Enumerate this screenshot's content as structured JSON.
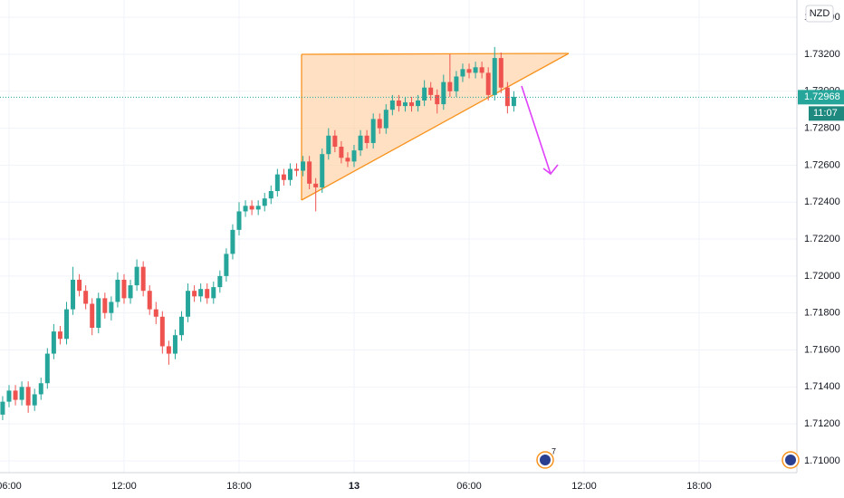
{
  "chart_data": {
    "type": "candlestick",
    "currency": "NZD",
    "last_price": 1.72968,
    "countdown": "11:07",
    "event_count_label": "7",
    "up_color": "#26a69a",
    "down_color": "#ef5350",
    "grid": true,
    "xlim": [
      331.7,
      2826
    ],
    "xticks": [
      {
        "value": 360,
        "label": "06:00"
      },
      {
        "value": 720,
        "label": "12:00"
      },
      {
        "value": 1080,
        "label": "18:00"
      },
      {
        "value": 1440,
        "label": "13"
      },
      {
        "value": 1800,
        "label": "06:00"
      },
      {
        "value": 2160,
        "label": "12:00"
      },
      {
        "value": 2520,
        "label": "18:00"
      }
    ],
    "ylim": [
      1.70936,
      1.73494
    ],
    "yticks": [
      {
        "value": 1.71,
        "label": "1.71000"
      },
      {
        "value": 1.712,
        "label": "1.71200"
      },
      {
        "value": 1.714,
        "label": "1.71400"
      },
      {
        "value": 1.716,
        "label": "1.71600"
      },
      {
        "value": 1.718,
        "label": "1.71800"
      },
      {
        "value": 1.72,
        "label": "1.72000"
      },
      {
        "value": 1.722,
        "label": "1.72200"
      },
      {
        "value": 1.724,
        "label": "1.72400"
      },
      {
        "value": 1.726,
        "label": "1.72600"
      },
      {
        "value": 1.728,
        "label": "1.72800"
      },
      {
        "value": 1.73,
        "label": "1.73000"
      },
      {
        "value": 1.732,
        "label": "1.73200"
      },
      {
        "value": 1.734,
        "label": "1.73400"
      }
    ],
    "x": [
      320,
      340,
      360,
      380,
      400,
      420,
      440,
      460,
      480,
      500,
      520,
      540,
      560,
      580,
      600,
      620,
      640,
      660,
      680,
      700,
      720,
      740,
      760,
      780,
      800,
      820,
      840,
      860,
      880,
      900,
      920,
      940,
      960,
      980,
      1000,
      1020,
      1040,
      1060,
      1080,
      1100,
      1120,
      1140,
      1160,
      1180,
      1200,
      1220,
      1240,
      1260,
      1280,
      1300,
      1320,
      1340,
      1360,
      1380,
      1400,
      1420,
      1440,
      1460,
      1480,
      1500,
      1520,
      1540,
      1560,
      1580,
      1600,
      1620,
      1640,
      1660,
      1680,
      1700,
      1720,
      1740,
      1760,
      1780,
      1800,
      1820,
      1840,
      1860,
      1880,
      1900,
      1920,
      1940
    ],
    "open": [
      1.712,
      1.7125,
      1.7132,
      1.7138,
      1.7133,
      1.714,
      1.713,
      1.7136,
      1.7142,
      1.7158,
      1.717,
      1.7166,
      1.7182,
      1.7198,
      1.7192,
      1.7185,
      1.7172,
      1.7188,
      1.718,
      1.7186,
      1.7198,
      1.7188,
      1.7195,
      1.7205,
      1.7192,
      1.7182,
      1.7178,
      1.7162,
      1.7158,
      1.7168,
      1.7178,
      1.7192,
      1.7189,
      1.7193,
      1.7188,
      1.7194,
      1.72,
      1.7212,
      1.7225,
      1.7235,
      1.7238,
      1.7236,
      1.7238,
      1.7242,
      1.7246,
      1.7255,
      1.7252,
      1.7258,
      1.7257,
      1.7262,
      1.725,
      1.7248,
      1.7266,
      1.7276,
      1.727,
      1.7264,
      1.7262,
      1.7268,
      1.7276,
      1.7272,
      1.7285,
      1.728,
      1.729,
      1.7295,
      1.7292,
      1.7294,
      1.7292,
      1.7295,
      1.7302,
      1.7298,
      1.7293,
      1.7305,
      1.73,
      1.7308,
      1.7312,
      1.731,
      1.7313,
      1.731,
      1.7298,
      1.7318,
      1.7302,
      1.7292
    ],
    "high": [
      1.7128,
      1.7135,
      1.7141,
      1.7141,
      1.7143,
      1.7143,
      1.7139,
      1.7145,
      1.7161,
      1.7174,
      1.7173,
      1.7186,
      1.7205,
      1.7201,
      1.7195,
      1.7188,
      1.7191,
      1.7191,
      1.7189,
      1.7202,
      1.7201,
      1.7198,
      1.7209,
      1.7208,
      1.7195,
      1.7186,
      1.7181,
      1.7165,
      1.7171,
      1.7181,
      1.7196,
      1.7195,
      1.7196,
      1.7196,
      1.7197,
      1.7203,
      1.7215,
      1.7228,
      1.724,
      1.7241,
      1.7241,
      1.7241,
      1.7245,
      1.7249,
      1.7258,
      1.7258,
      1.7261,
      1.7261,
      1.7265,
      1.7265,
      1.7253,
      1.7269,
      1.728,
      1.7279,
      1.7273,
      1.7267,
      1.7271,
      1.7279,
      1.7279,
      1.7288,
      1.7288,
      1.7293,
      1.7298,
      1.7298,
      1.7297,
      1.7297,
      1.7298,
      1.7306,
      1.7305,
      1.7301,
      1.7309,
      1.732,
      1.7311,
      1.7315,
      1.7315,
      1.7316,
      1.7316,
      1.7313,
      1.7324,
      1.7321,
      1.7305,
      1.73
    ],
    "low": [
      1.7117,
      1.7122,
      1.7129,
      1.713,
      1.713,
      1.7126,
      1.7127,
      1.7133,
      1.7139,
      1.7155,
      1.7163,
      1.7163,
      1.7179,
      1.7189,
      1.7182,
      1.7168,
      1.7169,
      1.7177,
      1.7176,
      1.7183,
      1.7185,
      1.7185,
      1.7192,
      1.7189,
      1.7179,
      1.7174,
      1.7158,
      1.7152,
      1.7155,
      1.7165,
      1.7175,
      1.7186,
      1.7186,
      1.7185,
      1.7185,
      1.7191,
      1.7197,
      1.7209,
      1.7222,
      1.7232,
      1.7233,
      1.7233,
      1.7235,
      1.7239,
      1.7243,
      1.7249,
      1.7249,
      1.7254,
      1.7254,
      1.7247,
      1.7235,
      1.7245,
      1.7263,
      1.7267,
      1.7261,
      1.7259,
      1.7259,
      1.7265,
      1.7269,
      1.7269,
      1.7277,
      1.7277,
      1.7287,
      1.7289,
      1.7289,
      1.7289,
      1.7289,
      1.7292,
      1.7295,
      1.7288,
      1.729,
      1.7297,
      1.7297,
      1.7305,
      1.7307,
      1.7307,
      1.7307,
      1.7295,
      1.7295,
      1.7299,
      1.7288,
      1.7289
    ],
    "close": [
      1.7125,
      1.7132,
      1.7138,
      1.7133,
      1.714,
      1.713,
      1.7136,
      1.7142,
      1.7158,
      1.717,
      1.7166,
      1.7182,
      1.7198,
      1.7192,
      1.7185,
      1.7172,
      1.7188,
      1.718,
      1.7186,
      1.7198,
      1.7188,
      1.7195,
      1.7205,
      1.7192,
      1.7182,
      1.7178,
      1.7162,
      1.7158,
      1.7168,
      1.7178,
      1.7192,
      1.7189,
      1.7193,
      1.7188,
      1.7194,
      1.72,
      1.7212,
      1.7225,
      1.7235,
      1.7238,
      1.7236,
      1.7238,
      1.7242,
      1.7246,
      1.7255,
      1.7252,
      1.7258,
      1.7257,
      1.7262,
      1.725,
      1.7248,
      1.7266,
      1.7276,
      1.727,
      1.7264,
      1.7262,
      1.7268,
      1.7276,
      1.7272,
      1.7285,
      1.728,
      1.729,
      1.7295,
      1.7292,
      1.7294,
      1.7292,
      1.7295,
      1.7302,
      1.7298,
      1.7293,
      1.7305,
      1.73,
      1.7308,
      1.7312,
      1.731,
      1.7313,
      1.731,
      1.7298,
      1.7318,
      1.7302,
      1.7292,
      1.7297
    ]
  }
}
